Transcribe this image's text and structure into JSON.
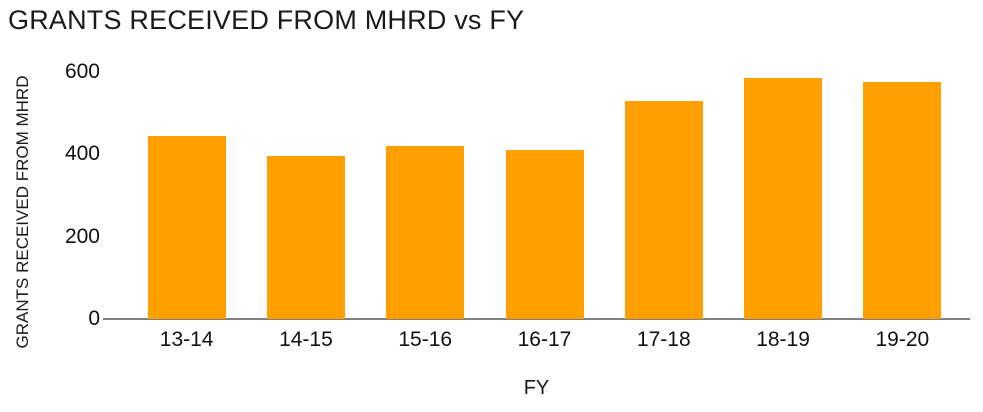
{
  "chart_data": {
    "type": "bar",
    "title": "GRANTS RECEIVED FROM MHRD vs FY",
    "xlabel": "FY",
    "ylabel": "GRANTS RECEIVED FROM MHRD",
    "categories": [
      "13-14",
      "14-15",
      "15-16",
      "16-17",
      "17-18",
      "18-19",
      "19-20"
    ],
    "values": [
      445,
      395,
      420,
      410,
      530,
      585,
      575
    ],
    "ylim": [
      0,
      600
    ],
    "yticks": [
      0,
      200,
      400,
      600
    ],
    "grid": false,
    "legend": false,
    "bar_color": "#FFA000",
    "axis_line_color": "#7f7f7f",
    "text_color": "#1a1a1a"
  }
}
